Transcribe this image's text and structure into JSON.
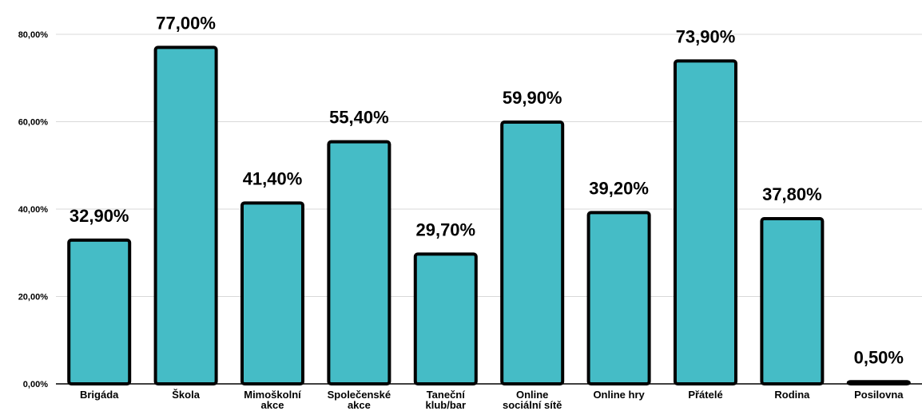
{
  "chart_data": {
    "type": "bar",
    "categories": [
      "Brigáda",
      "Škola",
      "Mimoškolní akce",
      "Společenské akce",
      "Taneční klub/bar",
      "Online sociální sítě",
      "Online hry",
      "Přátelé",
      "Rodina",
      "Posilovna"
    ],
    "category_lines": [
      [
        "Brigáda"
      ],
      [
        "Škola"
      ],
      [
        "Mimoškolní",
        "akce"
      ],
      [
        "Společenské",
        "akce"
      ],
      [
        "Taneční",
        "klub/bar"
      ],
      [
        "Online",
        "sociální sítě"
      ],
      [
        "Online hry"
      ],
      [
        "Přátelé"
      ],
      [
        "Rodina"
      ],
      [
        "Posilovna"
      ]
    ],
    "values": [
      32.9,
      77.0,
      41.4,
      55.4,
      29.7,
      59.9,
      39.2,
      73.9,
      37.8,
      0.5
    ],
    "data_labels": [
      "32,90%",
      "77,00%",
      "41,40%",
      "55,40%",
      "29,70%",
      "59,90%",
      "39,20%",
      "73,90%",
      "37,80%",
      "0,50%"
    ],
    "y_ticks": [
      0,
      20,
      40,
      60,
      80
    ],
    "y_tick_labels": [
      "0,00%",
      "20,00%",
      "40,00%",
      "60,00%",
      "80,00%"
    ],
    "ylim": [
      0,
      80
    ],
    "title": "",
    "xlabel": "",
    "ylabel": "",
    "grid": true,
    "legend": "none",
    "bar_color": "#45bcc6",
    "bar_outline_color": "#000000",
    "grid_color": "#d9d9d9"
  }
}
